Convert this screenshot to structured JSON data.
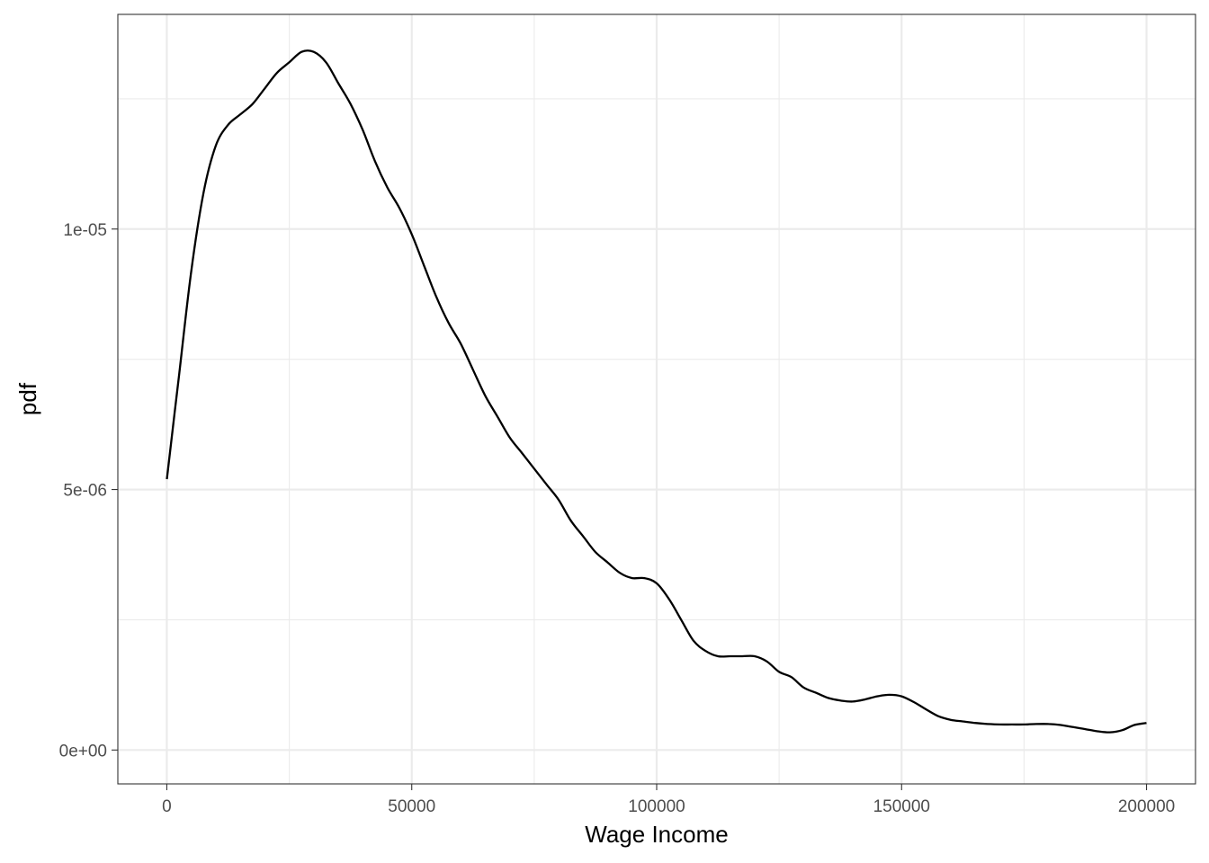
{
  "chart_data": {
    "type": "line",
    "title": "",
    "xlabel": "Wage Income",
    "ylabel": "pdf",
    "xlim": [
      -10000,
      210000
    ],
    "ylim": [
      -6.5e-07,
      1.412e-05
    ],
    "x_ticks": [
      0,
      50000,
      100000,
      150000,
      200000
    ],
    "x_tick_labels": [
      "0",
      "50000",
      "100000",
      "150000",
      "200000"
    ],
    "x_minor_ticks": [
      25000,
      75000,
      125000,
      175000
    ],
    "y_ticks": [
      0,
      5e-06,
      1e-05
    ],
    "y_tick_labels": [
      "0e+00",
      "5e-06",
      "1e-05"
    ],
    "y_minor_ticks": [
      2.5e-06,
      7.5e-06,
      1.25e-05
    ],
    "grid": true,
    "legend": "none",
    "colors": {
      "line": "#000000",
      "grid": "#ebebeb",
      "panel_border": "#333333"
    },
    "series": [
      {
        "x": [
          0,
          2500,
          5000,
          7500,
          10000,
          12500,
          15000,
          17500,
          20000,
          22500,
          25000,
          27500,
          30000,
          32500,
          35000,
          37500,
          40000,
          42500,
          45000,
          47500,
          50000,
          52500,
          55000,
          57500,
          60000,
          62500,
          65000,
          67500,
          70000,
          72500,
          75000,
          77500,
          80000,
          82500,
          85000,
          87500,
          90000,
          92500,
          95000,
          97500,
          100000,
          102500,
          105000,
          107500,
          110000,
          112500,
          115000,
          117500,
          120000,
          122500,
          125000,
          127500,
          130000,
          132500,
          135000,
          137500,
          140000,
          142500,
          145000,
          147500,
          150000,
          152500,
          155000,
          157500,
          160000,
          162500,
          165000,
          167500,
          170000,
          172500,
          175000,
          177500,
          180000,
          182500,
          185000,
          187500,
          190000,
          192500,
          195000,
          197500,
          200000
        ],
        "values": [
          5.2e-06,
          7.2e-06,
          9.2e-06,
          1.07e-05,
          1.16e-05,
          1.2e-05,
          1.22e-05,
          1.24e-05,
          1.27e-05,
          1.3e-05,
          1.32e-05,
          1.34e-05,
          1.34e-05,
          1.32e-05,
          1.28e-05,
          1.24e-05,
          1.19e-05,
          1.13e-05,
          1.08e-05,
          1.04e-05,
          9.9e-06,
          9.3e-06,
          8.7e-06,
          8.2e-06,
          7.8e-06,
          7.3e-06,
          6.8e-06,
          6.4e-06,
          6e-06,
          5.7e-06,
          5.4e-06,
          5.1e-06,
          4.8e-06,
          4.4e-06,
          4.1e-06,
          3.8e-06,
          3.6e-06,
          3.4e-06,
          3.3e-06,
          3.3e-06,
          3.2e-06,
          2.9e-06,
          2.5e-06,
          2.1e-06,
          1.9e-06,
          1.8e-06,
          1.8e-06,
          1.8e-06,
          1.8e-06,
          1.7e-06,
          1.5e-06,
          1.4e-06,
          1.2e-06,
          1.1e-06,
          1e-06,
          9.5e-07,
          9.3e-07,
          9.7e-07,
          1.03e-06,
          1.06e-06,
          1.03e-06,
          9.2e-07,
          7.8e-07,
          6.5e-07,
          5.8e-07,
          5.5e-07,
          5.2e-07,
          5e-07,
          4.9e-07,
          4.9e-07,
          4.9e-07,
          5e-07,
          5e-07,
          4.8e-07,
          4.4e-07,
          4e-07,
          3.6e-07,
          3.4e-07,
          3.8e-07,
          4.8e-07,
          5.2e-07
        ]
      }
    ]
  }
}
